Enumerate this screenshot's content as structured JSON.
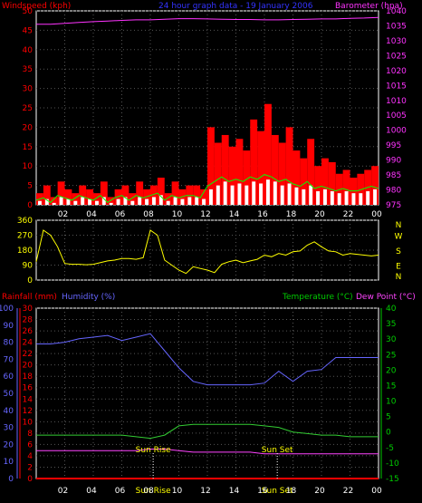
{
  "colors": {
    "wind_red": "#ff0000",
    "gust_white": "#ffffff",
    "avg_green": "#00ff00",
    "baro_magenta": "#ff33ff",
    "header_blue": "#3333ff",
    "direction_yellow": "#ffff00",
    "humidity_blue": "#6666ff",
    "temp_green": "#33cc33",
    "dew_magenta": "#ff44ff",
    "rain_red": "#ff0000",
    "axis_blue": "#3366ff",
    "axis_green": "#00cc00",
    "grid": "#555555"
  },
  "chart_data": [
    {
      "id": "wind_pressure",
      "type": "line",
      "title": "24 hour graph data - 19 January 2006",
      "left_label": "Windspeed (kph)",
      "right_label": "Barometer (hpa)",
      "x_ticks": [
        "02",
        "04",
        "06",
        "08",
        "10",
        "12",
        "14",
        "16",
        "18",
        "20",
        "22",
        "00"
      ],
      "y_left": {
        "min": 0,
        "max": 50,
        "ticks": [
          "0",
          "5",
          "10",
          "15",
          "20",
          "25",
          "30",
          "35",
          "40",
          "45",
          "50"
        ]
      },
      "y_right": {
        "min": 975,
        "max": 1040,
        "ticks": [
          "975",
          "980",
          "985",
          "990",
          "995",
          "1000",
          "1005",
          "1010",
          "1015",
          "1020",
          "1025",
          "1030",
          "1035",
          "1040"
        ]
      },
      "series": {
        "barometer_hour": [
          0,
          1,
          2,
          3,
          4,
          5,
          6,
          7,
          8,
          9,
          10,
          11,
          12,
          13,
          14,
          15,
          16,
          17,
          18,
          19,
          20,
          21,
          22,
          23,
          24
        ],
        "barometer_hpa": [
          1035.5,
          1035.5,
          1035.8,
          1036.1,
          1036.4,
          1036.6,
          1036.8,
          1037.0,
          1037.0,
          1037.2,
          1037.4,
          1037.4,
          1037.3,
          1037.2,
          1037.1,
          1037.1,
          1037.0,
          1037.0,
          1037.1,
          1037.2,
          1037.3,
          1037.3,
          1037.5,
          1037.6,
          1037.8
        ],
        "wind_hour": [
          0,
          0.5,
          1,
          1.5,
          2,
          2.5,
          3,
          3.5,
          4,
          4.5,
          5,
          5.5,
          6,
          6.5,
          7,
          7.5,
          8,
          8.5,
          9,
          9.5,
          10,
          10.5,
          11,
          11.5,
          12,
          12.5,
          13,
          13.5,
          14,
          14.5,
          15,
          15.5,
          16,
          16.5,
          17,
          17.5,
          18,
          18.5,
          19,
          19.5,
          20,
          20.5,
          21,
          21.5,
          22,
          22.5,
          23,
          23.5,
          24
        ],
        "wind_gust_kph": [
          3,
          5,
          2,
          6,
          4,
          3,
          5,
          4,
          3,
          6,
          2,
          4,
          5,
          3,
          6,
          4,
          5,
          7,
          3,
          6,
          4,
          5,
          5,
          4,
          20,
          16,
          18,
          15,
          17,
          14,
          22,
          19,
          26,
          18,
          16,
          20,
          14,
          12,
          17,
          10,
          12,
          11,
          8,
          9,
          7,
          8,
          9,
          10,
          8
        ],
        "wind_avg_kph": [
          1,
          1.5,
          0.5,
          2,
          1.5,
          1,
          2,
          1.5,
          1,
          2,
          0.5,
          1.5,
          2,
          1,
          2,
          1.5,
          2,
          2.5,
          1,
          2,
          1.5,
          2,
          2,
          1.5,
          4,
          5,
          6,
          5,
          5.5,
          5,
          6,
          5.5,
          6.5,
          6,
          5,
          5.5,
          4.5,
          4,
          5,
          3.5,
          4,
          3.5,
          3,
          3.5,
          3,
          3,
          3.5,
          4,
          3.5
        ]
      }
    },
    {
      "id": "wind_direction",
      "type": "line",
      "x_ticks": [
        "02",
        "04",
        "06",
        "08",
        "10",
        "12",
        "14",
        "16",
        "18",
        "20",
        "22",
        "00"
      ],
      "y_left": {
        "min": 0,
        "max": 360,
        "ticks": [
          "0",
          "90",
          "180",
          "270",
          "360"
        ]
      },
      "y_right_labels": [
        "N",
        "W",
        "S",
        "E",
        "N"
      ],
      "series": {
        "hour": [
          0,
          0.5,
          1,
          1.5,
          2,
          2.5,
          3,
          3.5,
          4,
          4.5,
          5,
          5.5,
          6,
          6.5,
          7,
          7.5,
          8,
          8.5,
          9,
          9.5,
          10,
          10.5,
          11,
          11.5,
          12,
          12.5,
          13,
          13.5,
          14,
          14.5,
          15,
          15.5,
          16,
          16.5,
          17,
          17.5,
          18,
          18.5,
          19,
          19.5,
          20,
          20.5,
          21,
          21.5,
          22,
          22.5,
          23,
          23.5,
          24
        ],
        "direction_deg": [
          110,
          300,
          270,
          200,
          100,
          95,
          95,
          92,
          95,
          105,
          115,
          120,
          130,
          130,
          125,
          135,
          300,
          270,
          120,
          90,
          60,
          40,
          80,
          70,
          60,
          45,
          95,
          110,
          120,
          105,
          115,
          125,
          150,
          140,
          160,
          150,
          170,
          175,
          210,
          230,
          200,
          175,
          170,
          150,
          160,
          155,
          150,
          145,
          150
        ]
      }
    },
    {
      "id": "temp_humidity",
      "type": "line",
      "left_label_rain": "Rainfall (mm)",
      "left_label_humidity": "Humidity (%)",
      "right_label_temp": "Temperature (°C)",
      "right_label_dew": "Dew Point (°C)",
      "x_ticks": [
        "02",
        "04",
        "06",
        "08",
        "10",
        "12",
        "14",
        "16",
        "18",
        "20",
        "22",
        "00"
      ],
      "annotations": {
        "sunrise": "Sun Rise",
        "sunset": "Sun Set",
        "sunrise_time": "Sun Rise",
        "sunset_time": "Sun Set"
      },
      "y_humidity": {
        "min": 0,
        "max": 100,
        "ticks": [
          "0",
          "10",
          "20",
          "30",
          "40",
          "50",
          "60",
          "70",
          "80",
          "90",
          "100"
        ]
      },
      "y_rain": {
        "min": 0,
        "max": 30,
        "ticks": [
          "0",
          "2",
          "4",
          "6",
          "8",
          "10",
          "12",
          "14",
          "16",
          "18",
          "20",
          "22",
          "24",
          "26",
          "28",
          "30"
        ]
      },
      "y_temp": {
        "min": -15,
        "max": 40,
        "ticks": [
          "-15",
          "-10",
          "-5",
          "0",
          "5",
          "10",
          "15",
          "20",
          "25",
          "30",
          "35",
          "40"
        ]
      },
      "series": {
        "hour": [
          0,
          1,
          2,
          3,
          4,
          5,
          6,
          7,
          8,
          9,
          10,
          11,
          12,
          13,
          14,
          15,
          16,
          17,
          18,
          19,
          20,
          21,
          22,
          23,
          24
        ],
        "humidity_pct": [
          79,
          79,
          80,
          82,
          83,
          84,
          81,
          83,
          85,
          75,
          65,
          57,
          55,
          55,
          55,
          55,
          56,
          63,
          57,
          63,
          64,
          71,
          71,
          71,
          71
        ],
        "temperature_c": [
          -1,
          -1,
          -1,
          -1,
          -1,
          -1,
          -1,
          -1.5,
          -2,
          -1,
          2,
          2.5,
          2.5,
          2.5,
          2.5,
          2.5,
          2,
          1.5,
          0,
          -0.5,
          -1,
          -1,
          -1.5,
          -1.5,
          -1.5
        ],
        "dew_point_c": [
          -6,
          -6,
          -6,
          -6,
          -6,
          -6,
          -6,
          -6,
          -5.5,
          -5.5,
          -6,
          -6.5,
          -6.5,
          -6.5,
          -6.5,
          -6.5,
          -7,
          -7,
          -7,
          -7,
          -7,
          -7,
          -7,
          -7,
          -7
        ],
        "rainfall_mm": [
          0,
          0,
          0,
          0,
          0,
          0,
          0,
          0,
          0,
          0,
          0,
          0,
          0,
          0,
          0,
          0,
          0,
          0,
          0,
          0,
          0,
          0,
          0,
          0,
          0
        ]
      }
    }
  ]
}
